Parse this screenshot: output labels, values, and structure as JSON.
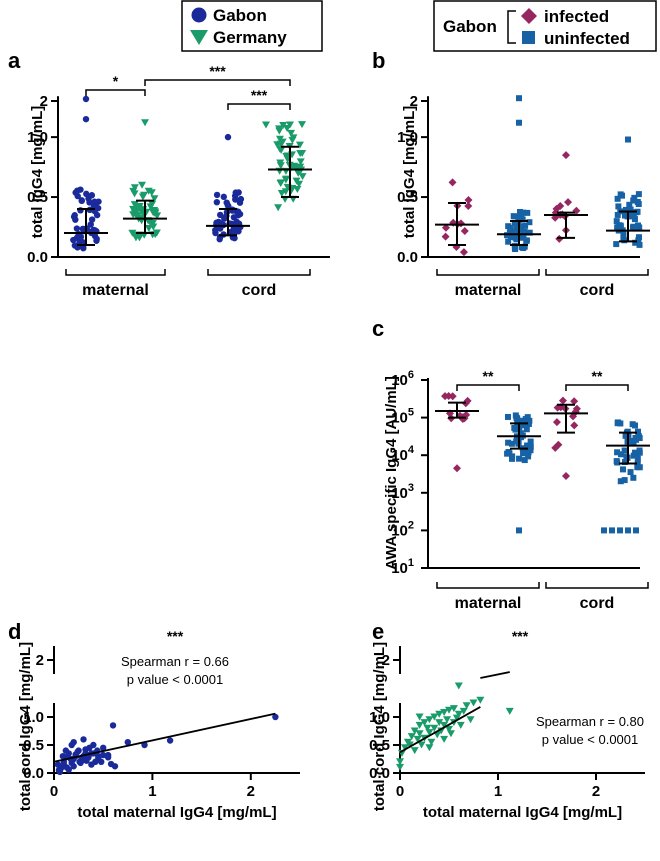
{
  "colors": {
    "gabon": "#1a2a9a",
    "germany": "#1a9b6a",
    "infected": "#962660",
    "uninfected": "#1762a5"
  },
  "legend_a": {
    "gabon": "Gabon",
    "germany": "Germany"
  },
  "legend_b": {
    "group": "Gabon",
    "infected": "infected",
    "uninfected": "uninfected"
  },
  "chart_data": [
    {
      "panel": "a",
      "type": "scatter",
      "ylabel": "total IgG4 [mg/mL]",
      "categories": [
        "maternal",
        "cord"
      ],
      "ylim": [
        0,
        2.25
      ],
      "y_ticks": [
        "0.0",
        "0.5",
        "1.0",
        "2"
      ],
      "y_axis_break": true,
      "series": [
        {
          "name": "Gabon",
          "category": "maternal",
          "median": 0.2,
          "iqr": [
            0.1,
            0.4
          ]
        },
        {
          "name": "Germany",
          "category": "maternal",
          "median": 0.32,
          "iqr": [
            0.2,
            0.47
          ]
        },
        {
          "name": "Gabon",
          "category": "cord",
          "median": 0.26,
          "iqr": [
            0.18,
            0.4
          ]
        },
        {
          "name": "Germany",
          "category": "cord",
          "median": 0.73,
          "iqr": [
            0.5,
            0.92
          ]
        }
      ],
      "significance": [
        {
          "label": "*",
          "between": [
            "Gabon maternal",
            "Germany maternal"
          ]
        },
        {
          "label": "***",
          "between": [
            "Germany maternal",
            "Germany cord"
          ]
        },
        {
          "label": "***",
          "between": [
            "Gabon cord",
            "Germany cord"
          ]
        }
      ]
    },
    {
      "panel": "b",
      "type": "scatter",
      "ylabel": "total IgG4 [mg/mL]",
      "categories": [
        "maternal",
        "cord"
      ],
      "ylim": [
        0,
        2.25
      ],
      "y_ticks": [
        "0.0",
        "0.5",
        "1.0",
        "2"
      ],
      "y_axis_break": true,
      "series": [
        {
          "name": "infected",
          "category": "maternal",
          "median": 0.27,
          "iqr": [
            0.1,
            0.45
          ]
        },
        {
          "name": "uninfected",
          "category": "maternal",
          "median": 0.19,
          "iqr": [
            0.1,
            0.3
          ]
        },
        {
          "name": "infected",
          "category": "cord",
          "median": 0.35,
          "iqr": [
            0.16,
            0.37
          ]
        },
        {
          "name": "uninfected",
          "category": "cord",
          "median": 0.22,
          "iqr": [
            0.13,
            0.38
          ]
        }
      ]
    },
    {
      "panel": "c",
      "type": "scatter",
      "ylabel": "AWA specific IgG4 [AU/mL]",
      "categories": [
        "maternal",
        "cord"
      ],
      "y_scale": "log",
      "ylim": [
        10,
        1000000
      ],
      "y_ticks": [
        "10",
        "10^2",
        "10^3",
        "10^4",
        "10^5",
        "10^6"
      ],
      "series": [
        {
          "name": "infected",
          "category": "maternal",
          "median": 150000,
          "iqr": [
            100000,
            250000
          ]
        },
        {
          "name": "uninfected",
          "category": "maternal",
          "median": 32000,
          "iqr": [
            15000,
            70000
          ]
        },
        {
          "name": "infected",
          "category": "cord",
          "median": 130000,
          "iqr": [
            40000,
            220000
          ]
        },
        {
          "name": "uninfected",
          "category": "cord",
          "median": 18000,
          "iqr": [
            6000,
            40000
          ]
        }
      ],
      "significance": [
        {
          "label": "**",
          "between": [
            "infected maternal",
            "uninfected maternal"
          ]
        },
        {
          "label": "**",
          "between": [
            "infected cord",
            "uninfected cord"
          ]
        }
      ]
    },
    {
      "panel": "d",
      "type": "scatter",
      "xlabel": "total maternal IgG4 [mg/mL]",
      "ylabel": "total cord IgG4 [mg/mL]",
      "xlim": [
        0,
        2.5
      ],
      "ylim": [
        0,
        2.25
      ],
      "x_ticks": [
        "0",
        "1",
        "2"
      ],
      "y_ticks": [
        "0.0",
        "0.5",
        "1.0",
        "2"
      ],
      "significance": "***",
      "stat_line1": "Spearman r = 0.66",
      "stat_line2": "p value < 0.0001",
      "fit": {
        "x": [
          0,
          2.25
        ],
        "y": [
          0.2,
          1.06
        ]
      },
      "series": [
        {
          "name": "Gabon",
          "x": [
            0.05,
            0.08,
            0.1,
            0.12,
            0.15,
            0.18,
            0.2,
            0.22,
            0.25,
            0.28,
            0.3,
            0.32,
            0.35,
            0.38,
            0.4,
            0.42,
            0.45,
            0.5,
            0.55,
            0.6,
            0.07,
            0.1,
            0.13,
            0.17,
            0.2,
            0.24,
            0.27,
            0.3,
            0.33,
            0.36,
            0.4,
            0.45,
            0.5,
            0.58,
            0.75,
            0.92,
            1.18,
            2.25,
            0.12,
            0.18,
            0.22,
            0.28,
            0.04,
            0.06,
            0.09,
            0.15,
            0.2,
            0.26,
            0.32,
            0.38,
            0.44,
            0.48,
            0.55,
            0.62
          ],
          "y": [
            0.05,
            0.12,
            0.2,
            0.28,
            0.35,
            0.18,
            0.25,
            0.3,
            0.4,
            0.22,
            0.3,
            0.42,
            0.28,
            0.35,
            0.5,
            0.2,
            0.3,
            0.45,
            0.32,
            0.85,
            0.08,
            0.15,
            0.1,
            0.25,
            0.55,
            0.38,
            0.18,
            0.6,
            0.22,
            0.45,
            0.35,
            0.26,
            0.32,
            0.16,
            0.55,
            0.5,
            0.58,
            1.0,
            0.4,
            0.5,
            0.33,
            0.27,
            0.15,
            0.02,
            0.3,
            0.06,
            0.12,
            0.2,
            0.35,
            0.15,
            0.4,
            0.2,
            0.28,
            0.12
          ]
        }
      ]
    },
    {
      "panel": "e",
      "type": "scatter",
      "xlabel": "total maternal IgG4 [mg/mL]",
      "ylabel": "total cord IgG4 [mg/mL]",
      "xlim": [
        0,
        2.5
      ],
      "ylim": [
        0,
        2.25
      ],
      "x_ticks": [
        "0",
        "1",
        "2"
      ],
      "y_ticks": [
        "0.0",
        "0.5",
        "1.0",
        "2"
      ],
      "significance": "***",
      "stat_line1": "Spearman r = 0.80",
      "stat_line2": "p value < 0.0001",
      "fit": {
        "x": [
          0,
          0.82
        ],
        "y": [
          0.37,
          1.18
        ]
      },
      "fit_break": {
        "x": [
          0.82,
          1.12
        ],
        "y": [
          1.6,
          1.68
        ]
      },
      "series": [
        {
          "name": "Germany",
          "x": [
            0.0,
            0.0,
            0.02,
            0.05,
            0.08,
            0.1,
            0.12,
            0.15,
            0.15,
            0.18,
            0.2,
            0.2,
            0.22,
            0.25,
            0.25,
            0.28,
            0.3,
            0.3,
            0.32,
            0.35,
            0.35,
            0.38,
            0.4,
            0.4,
            0.42,
            0.45,
            0.45,
            0.48,
            0.5,
            0.52,
            0.55,
            0.55,
            0.58,
            0.6,
            0.62,
            0.65,
            0.68,
            0.72,
            0.75,
            0.82,
            1.12,
            0.2,
            0.3,
            0.45,
            0.5,
            0.6
          ],
          "y": [
            0.1,
            0.2,
            0.35,
            0.45,
            0.55,
            0.5,
            0.65,
            0.4,
            0.75,
            0.6,
            0.85,
            0.7,
            0.5,
            0.9,
            0.62,
            0.8,
            0.95,
            0.72,
            0.55,
            1.0,
            0.8,
            0.68,
            1.05,
            0.9,
            0.75,
            1.08,
            0.85,
            0.95,
            1.12,
            0.7,
            1.15,
            0.9,
            0.98,
            1.05,
            0.85,
            1.1,
            1.2,
            0.95,
            1.25,
            1.3,
            1.1,
            1.0,
            0.45,
            0.6,
            0.78,
            1.35
          ]
        }
      ]
    }
  ]
}
